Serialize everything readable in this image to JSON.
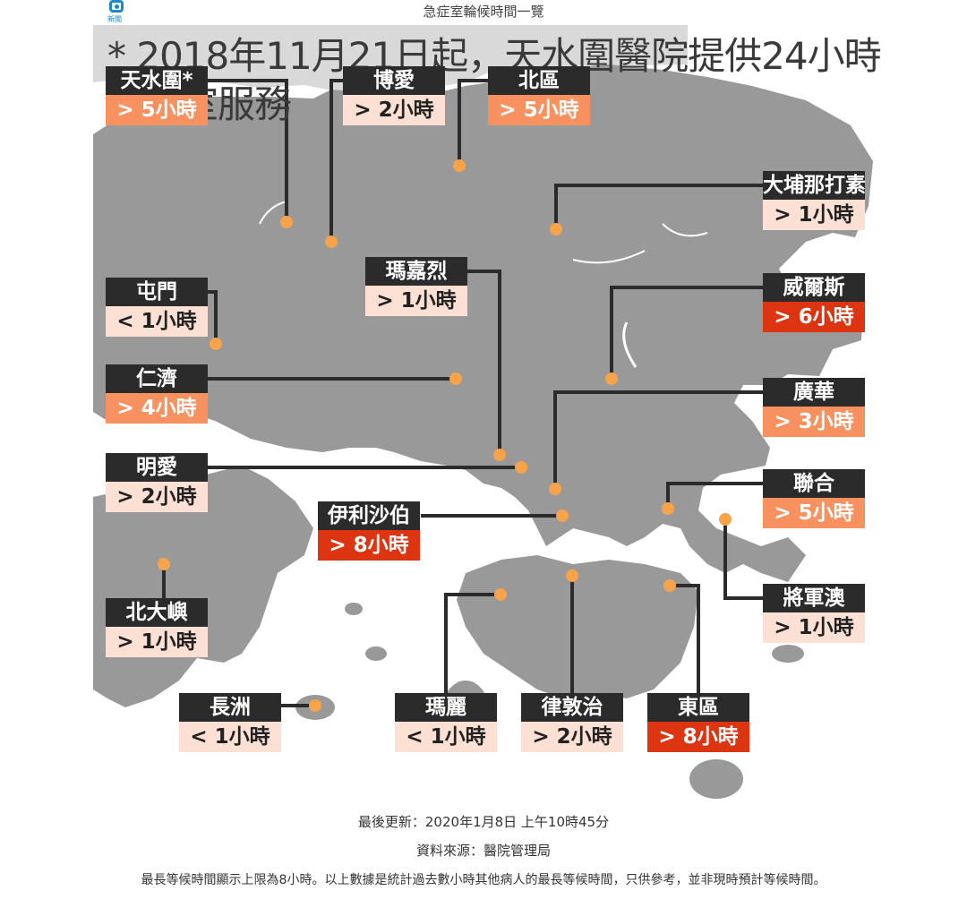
{
  "page_title": "急症室輪候時間一覽",
  "logo_text": "新聞",
  "note": "* 2018年11月21日起，天水圍醫院提供24小時急症室服務",
  "colors": {
    "land": "#999999",
    "sea": "#ffffff",
    "shenzhen": "#d9d9d9",
    "label_bg": "#2b2b2b",
    "wait_short": "#fbe0d3",
    "wait_medium": "#f79160",
    "wait_long": "#dd3512",
    "marker": "#f6a34c"
  },
  "hospitals": [
    {
      "name": "天水圍*",
      "wait": "> 5小時"
    },
    {
      "name": "博愛",
      "wait": "> 2小時"
    },
    {
      "name": "北區",
      "wait": "> 5小時"
    },
    {
      "name": "大埔那打素",
      "wait": "> 1小時"
    },
    {
      "name": "瑪嘉烈",
      "wait": "> 1小時"
    },
    {
      "name": "屯門",
      "wait": "< 1小時"
    },
    {
      "name": "威爾斯",
      "wait": "> 6小時"
    },
    {
      "name": "仁濟",
      "wait": "> 4小時"
    },
    {
      "name": "廣華",
      "wait": "> 3小時"
    },
    {
      "name": "明愛",
      "wait": "> 2小時"
    },
    {
      "name": "伊利沙伯",
      "wait": "> 8小時"
    },
    {
      "name": "聯合",
      "wait": "> 5小時"
    },
    {
      "name": "北大嶼",
      "wait": "> 1小時"
    },
    {
      "name": "將軍澳",
      "wait": "> 1小時"
    },
    {
      "name": "長洲",
      "wait": "< 1小時"
    },
    {
      "name": "瑪麗",
      "wait": "< 1小時"
    },
    {
      "name": "律敦治",
      "wait": "> 2小時"
    },
    {
      "name": "東區",
      "wait": "> 8小時"
    }
  ],
  "footer": {
    "updated": "最後更新：2020年1月8日 上午10時45分",
    "source": "資料來源：醫院管理局",
    "disclaimer": "最長等候時間顯示上限為8小時。以上數據是統計過去數小時其他病人的最長等候時間，只供參考，並非現時預計等候時間。"
  }
}
